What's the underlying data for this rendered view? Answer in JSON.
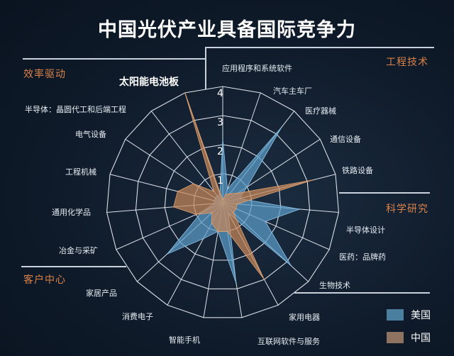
{
  "title": "中国光伏产业具备国际竞争力",
  "groups": [
    "效率驱动",
    "工程技术",
    "科学研究",
    "客户中心"
  ],
  "chart_data": {
    "type": "radar",
    "title": "中国光伏产业具备国际竞争力",
    "categories": [
      "应用程序和系统软件",
      "汽车主车厂",
      "医疗器械",
      "通信设备",
      "铁路设备",
      "半导体设计",
      "医药：品牌药",
      "生物技术",
      "家用电器",
      "互联网软件与服务",
      "智能手机",
      "消费电子",
      "家居产品",
      "冶金与采矿",
      "通用化学品",
      "工程机械",
      "电气设备",
      "半导体：晶圆代工和后端工程",
      "太阳能电池板"
    ],
    "ticks": [
      "1",
      "2",
      "3",
      "4"
    ],
    "rlim": [
      0,
      4
    ],
    "grid": true,
    "legend_position": "bottom-right",
    "series": [
      {
        "name": "美国",
        "color": "#5b9cc8",
        "values": [
          2.2,
          0.5,
          3.3,
          1.0,
          0.6,
          2.65,
          1.6,
          3.2,
          0.4,
          2.8,
          1.0,
          1.4,
          2.6,
          0.8,
          0.3,
          0.3,
          0.3,
          0.3,
          0.3
        ]
      },
      {
        "name": "中国",
        "color": "#c8885a",
        "values": [
          0.1,
          0.3,
          0.4,
          0.6,
          3.2,
          0.5,
          0.5,
          0.5,
          3.0,
          1.0,
          1.0,
          0.8,
          0.5,
          1.0,
          1.7,
          1.6,
          1.2,
          0.5,
          4.0
        ]
      }
    ]
  }
}
